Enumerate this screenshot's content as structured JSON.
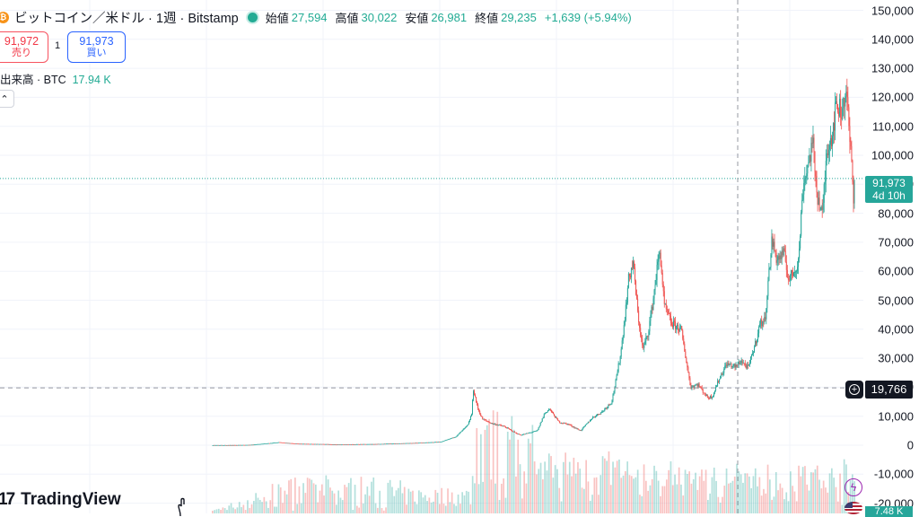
{
  "header": {
    "coin_symbol": "₿",
    "title": "ビットコイン／米ドル · 1週 · Bitstamp",
    "ohlc": [
      {
        "label": "始値",
        "value": "27,594"
      },
      {
        "label": "高値",
        "value": "30,022"
      },
      {
        "label": "安値",
        "value": "26,981"
      },
      {
        "label": "終値",
        "value": "29,235"
      }
    ],
    "change": "+1,639 (+5.94%)"
  },
  "trade": {
    "sell_price": "91,972",
    "sell_label": "売り",
    "spread": "1",
    "buy_price": "91,973",
    "buy_label": "買い"
  },
  "volume_legend": {
    "label": "出来高 · BTC",
    "value": "17.94 K"
  },
  "collapse_icon": "chevron-up-icon",
  "price_axis": {
    "ticks": [
      "150,000",
      "140,000",
      "130,000",
      "120,000",
      "110,000",
      "100,000",
      "90,000",
      "80,000",
      "70,000",
      "60,000",
      "50,000",
      "40,000",
      "30,000",
      "20,000",
      "10,000",
      "0",
      "-10,000",
      "-20,000"
    ]
  },
  "last_price": {
    "price": "91,973",
    "countdown": "4d 10h"
  },
  "crosshair": {
    "price": "19,766"
  },
  "volume_tag": "7.48 K",
  "logo_text": "TradingView",
  "colors": {
    "up": "#26a69a",
    "down": "#ef5350",
    "accent": "#2962ff",
    "text": "#131722"
  },
  "chart_data": {
    "type": "candlestick",
    "title": "ビットコイン／米ドル · 1週 · Bitstamp",
    "ylim": [
      -20000,
      155000
    ],
    "series": [
      {
        "name": "BTC/USD",
        "points": [
          [
            2012.5,
            0
          ],
          [
            2013.0,
            13
          ],
          [
            2013.3,
            100
          ],
          [
            2013.9,
            1000
          ],
          [
            2014.3,
            500
          ],
          [
            2014.9,
            350
          ],
          [
            2015.1,
            220
          ],
          [
            2015.9,
            400
          ],
          [
            2016.5,
            650
          ],
          [
            2016.95,
            900
          ],
          [
            2017.3,
            1200
          ],
          [
            2017.6,
            3000
          ],
          [
            2017.85,
            7000
          ],
          [
            2017.93,
            11000
          ],
          [
            2017.96,
            19500
          ],
          [
            2018.05,
            13000
          ],
          [
            2018.15,
            9000
          ],
          [
            2018.35,
            7500
          ],
          [
            2018.6,
            6500
          ],
          [
            2018.85,
            4200
          ],
          [
            2018.95,
            3500
          ],
          [
            2019.3,
            5000
          ],
          [
            2019.45,
            11000
          ],
          [
            2019.55,
            12500
          ],
          [
            2019.75,
            8000
          ],
          [
            2019.95,
            7200
          ],
          [
            2020.2,
            5000
          ],
          [
            2020.45,
            9500
          ],
          [
            2020.65,
            11500
          ],
          [
            2020.85,
            15000
          ],
          [
            2020.95,
            23000
          ],
          [
            2021.05,
            33000
          ],
          [
            2021.15,
            48000
          ],
          [
            2021.2,
            57000
          ],
          [
            2021.3,
            63000
          ],
          [
            2021.4,
            45000
          ],
          [
            2021.5,
            33000
          ],
          [
            2021.6,
            38000
          ],
          [
            2021.7,
            48000
          ],
          [
            2021.8,
            61000
          ],
          [
            2021.86,
            67000
          ],
          [
            2021.95,
            48000
          ],
          [
            2022.1,
            42000
          ],
          [
            2022.3,
            40000
          ],
          [
            2022.4,
            30000
          ],
          [
            2022.5,
            20000
          ],
          [
            2022.65,
            21000
          ],
          [
            2022.85,
            16500
          ],
          [
            2022.95,
            16800
          ],
          [
            2023.1,
            23000
          ],
          [
            2023.25,
            28000
          ],
          [
            2023.45,
            27000
          ],
          [
            2023.55,
            29235
          ],
          [
            2023.7,
            26500
          ],
          [
            2023.85,
            35000
          ],
          [
            2023.95,
            42000
          ],
          [
            2024.05,
            43000
          ],
          [
            2024.15,
            62000
          ],
          [
            2024.2,
            71000
          ],
          [
            2024.3,
            64000
          ],
          [
            2024.45,
            66000
          ],
          [
            2024.55,
            57000
          ],
          [
            2024.65,
            60000
          ],
          [
            2024.75,
            63000
          ],
          [
            2024.85,
            90000
          ],
          [
            2024.95,
            97000
          ],
          [
            2025.05,
            104000
          ],
          [
            2025.15,
            86000
          ],
          [
            2025.25,
            79000
          ],
          [
            2025.35,
            103000
          ],
          [
            2025.45,
            107000
          ],
          [
            2025.55,
            118000
          ],
          [
            2025.65,
            115000
          ],
          [
            2025.75,
            123000
          ],
          [
            2025.8,
            110000
          ],
          [
            2025.87,
            95000
          ],
          [
            2025.9,
            86000
          ],
          [
            2025.92,
            91973
          ]
        ]
      }
    ]
  }
}
